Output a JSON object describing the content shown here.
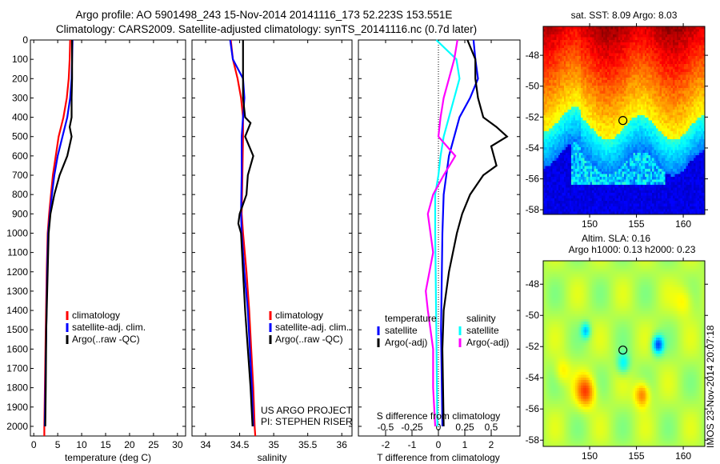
{
  "title": {
    "line1": "Argo profile: AO 5901498_243 15-Nov-2014 20141116_173 52.223S 153.551E",
    "line2": "Climatology: CARS2009. Satellite-adjusted climatology: synTS_20141116.nc (0.7d later)"
  },
  "colors": {
    "climatology": "#ff0000",
    "satellite": "#0000ff",
    "argo": "#000000",
    "sal_satellite": "#00ffff",
    "sal_argo": "#ff00ff"
  },
  "chart_data": [
    {
      "type": "line",
      "name": "temperature-profile",
      "xlabel": "temperature (deg C)",
      "ylabel": "depth",
      "xlim": [
        -0.7,
        31.7
      ],
      "ylim": [
        2050,
        0
      ],
      "xticks": [
        0,
        5,
        10,
        15,
        20,
        25,
        30
      ],
      "yticks": [
        0,
        100,
        200,
        300,
        400,
        500,
        600,
        700,
        800,
        900,
        1000,
        1100,
        1200,
        1300,
        1400,
        1500,
        1600,
        1700,
        1800,
        1900,
        2000
      ],
      "legend": [
        "climatology",
        "satellite-adj. clim.",
        "Argo(..raw -QC)"
      ],
      "series": [
        {
          "name": "climatology",
          "depth": [
            0,
            100,
            200,
            300,
            400,
            500,
            600,
            700,
            800,
            900,
            1000,
            1200,
            1500,
            2000,
            2050
          ],
          "values": [
            7.6,
            7.5,
            7.3,
            6.9,
            6.2,
            5.2,
            4.6,
            4.0,
            3.6,
            3.2,
            2.9,
            2.7,
            2.5,
            2.2,
            2.2
          ]
        },
        {
          "name": "satellite-adj. clim.",
          "depth": [
            0,
            100,
            200,
            300,
            400,
            500,
            600,
            700,
            800,
            900,
            1000,
            1200,
            1500,
            2000
          ],
          "values": [
            8.1,
            8.0,
            7.9,
            7.6,
            7.0,
            6.0,
            5.0,
            4.3,
            3.8,
            3.4,
            3.0,
            2.8,
            2.6,
            2.3
          ]
        },
        {
          "name": "Argo(..raw -QC)",
          "depth": [
            0,
            100,
            200,
            300,
            400,
            450,
            500,
            600,
            700,
            800,
            900,
            1000,
            1100,
            1200,
            1500,
            1800,
            2000
          ],
          "values": [
            8.0,
            8.0,
            8.0,
            7.9,
            7.9,
            7.5,
            7.9,
            7.0,
            5.4,
            4.3,
            3.5,
            3.1,
            3.0,
            2.9,
            2.6,
            2.5,
            2.4
          ]
        }
      ]
    },
    {
      "type": "line",
      "name": "salinity-profile",
      "xlabel": "salinity",
      "xlim": [
        33.8,
        36.15
      ],
      "ylim": [
        2050,
        0
      ],
      "xticks": [
        34,
        34.5,
        35,
        35.5,
        36
      ],
      "legend": [
        "climatology",
        "satellite-adj. clim.",
        "Argo(..raw -QC)"
      ],
      "annotation": [
        "US ARGO PROJECT",
        "PI: STEPHEN RISER"
      ],
      "series": [
        {
          "name": "climatology",
          "depth": [
            0,
            100,
            200,
            300,
            400,
            500,
            700,
            900,
            1000,
            1200,
            1400,
            1600,
            1800,
            2000,
            2050
          ],
          "values": [
            34.37,
            34.4,
            34.47,
            34.52,
            34.55,
            34.55,
            34.54,
            34.53,
            34.55,
            34.6,
            34.64,
            34.67,
            34.7,
            34.72,
            34.73
          ]
        },
        {
          "name": "satellite-adj. clim.",
          "depth": [
            0,
            100,
            200,
            300,
            400,
            500,
            700,
            900,
            1000,
            1200,
            1400,
            1600,
            1800,
            2000
          ],
          "values": [
            34.36,
            34.4,
            34.55,
            34.57,
            34.55,
            34.53,
            34.53,
            34.52,
            34.53,
            34.57,
            34.62,
            34.65,
            34.68,
            34.7
          ]
        },
        {
          "name": "Argo(..raw -QC)",
          "depth": [
            0,
            100,
            200,
            300,
            400,
            430,
            500,
            600,
            700,
            800,
            900,
            950,
            1000,
            1200,
            1400,
            1600,
            1800,
            2000
          ],
          "values": [
            34.55,
            34.55,
            34.55,
            34.55,
            34.58,
            34.66,
            34.58,
            34.7,
            34.62,
            34.6,
            34.5,
            34.48,
            34.52,
            34.55,
            34.58,
            34.62,
            34.66,
            34.69
          ]
        }
      ]
    },
    {
      "type": "line",
      "name": "difference-profile",
      "xlabel": "T difference from climatology",
      "xlabel_top": "S difference from climatology",
      "xlim": [
        -3.03,
        3.09
      ],
      "ylim": [
        2050,
        0
      ],
      "xticks": [
        -2,
        -1,
        0,
        1,
        2
      ],
      "xticks_top": [
        -0.5,
        -0.25,
        0,
        0.25,
        0.5
      ],
      "xticks_top_labels": [
        "-0.5",
        "-0.25",
        "0",
        "0.25",
        "0.5"
      ],
      "legend_headers": [
        "temperature",
        "salinity"
      ],
      "legend": [
        "satellite",
        "Argo(-adj)",
        "satellite",
        "Argo(-adj)"
      ],
      "series": [
        {
          "name": "T satellite",
          "quantity": "T",
          "depth": [
            0,
            100,
            200,
            300,
            400,
            500,
            600,
            700,
            800,
            1000,
            1500,
            2000
          ],
          "values": [
            1.33,
            1.4,
            1.5,
            1.2,
            0.8,
            0.6,
            0.4,
            0.3,
            0.2,
            0.15,
            0.1,
            0.15
          ]
        },
        {
          "name": "T Argo(-adj)",
          "quantity": "T",
          "depth": [
            0,
            100,
            200,
            300,
            400,
            450,
            500,
            550,
            600,
            650,
            700,
            800,
            900,
            1000,
            1200,
            1400,
            1600,
            2000
          ],
          "values": [
            1.1,
            1.4,
            1.4,
            1.5,
            1.7,
            2.2,
            2.6,
            2.0,
            2.1,
            2.2,
            1.7,
            1.2,
            0.9,
            0.7,
            0.4,
            0.2,
            0.15,
            0.2
          ]
        },
        {
          "name": "S satellite",
          "quantity": "S",
          "depth": [
            0,
            100,
            200,
            300,
            400,
            500,
            600,
            700,
            800,
            900,
            1000,
            1500,
            2000
          ],
          "values": [
            -0.02,
            0.17,
            0.2,
            0.15,
            0.1,
            0.05,
            0.02,
            0.0,
            -0.03,
            -0.03,
            -0.03,
            -0.02,
            -0.01
          ]
        },
        {
          "name": "S Argo(-adj)",
          "quantity": "S",
          "depth": [
            0,
            100,
            200,
            300,
            400,
            500,
            600,
            700,
            800,
            900,
            1100,
            1300,
            1400,
            1600,
            1800,
            2000
          ],
          "values": [
            0.18,
            0.15,
            0.1,
            0.05,
            0.02,
            0.0,
            0.16,
            0.05,
            -0.05,
            -0.1,
            -0.05,
            -0.12,
            -0.1,
            -0.05,
            -0.05,
            -0.03
          ]
        }
      ]
    },
    {
      "type": "heatmap",
      "name": "sst-map",
      "title": "sat. SST: 8.09 Argo: 8.03",
      "xlim": [
        145.04,
        162.3
      ],
      "ylim": [
        -58.3,
        -46.13
      ],
      "xticks": [
        150,
        155,
        160
      ],
      "yticks": [
        -48,
        -50,
        -52,
        -54,
        -56,
        -58
      ],
      "marker": {
        "lon": 153.551,
        "lat": -52.223
      }
    },
    {
      "type": "heatmap",
      "name": "sla-map",
      "title": [
        "Altim. SLA: 0.16",
        "Argo h1000: 0.13 h2000: 0.23"
      ],
      "xlim": [
        145.04,
        162.3
      ],
      "ylim": [
        -58.4,
        -46.5
      ],
      "xticks": [
        150,
        155,
        160
      ],
      "yticks": [
        -48,
        -50,
        -52,
        -54,
        -56,
        -58
      ],
      "marker": {
        "lon": 153.551,
        "lat": -52.223
      }
    }
  ],
  "credit": "IMOS 23-Nov-2014 20:07:18"
}
